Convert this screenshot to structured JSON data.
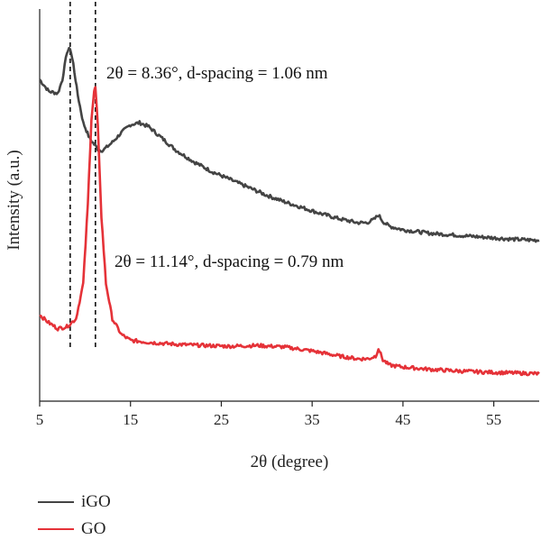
{
  "chart_data": {
    "type": "line",
    "xlabel": "2θ (degree)",
    "ylabel": "Intensity (a.u.)",
    "xlim": [
      5,
      60
    ],
    "xticks": [
      5,
      15,
      25,
      35,
      45,
      55
    ],
    "ylim": [
      0,
      100
    ],
    "vertical_dashed_lines": [
      8.36,
      11.14
    ],
    "annotations": [
      {
        "text": "2θ = 8.36°, d-spacing = 1.06 nm"
      },
      {
        "text": "2θ = 11.14°, d-spacing = 0.79 nm"
      }
    ],
    "legend_position": "bottom-left",
    "series": [
      {
        "name": "iGO",
        "color": "#444444",
        "x": [
          5,
          6,
          7,
          7.5,
          8,
          8.36,
          8.7,
          9.2,
          9.8,
          10.5,
          11,
          11.5,
          12,
          13,
          14,
          15,
          16,
          17,
          18,
          19,
          20,
          22,
          24,
          26,
          28,
          30,
          32,
          34,
          36,
          38,
          40,
          41,
          41.8,
          42.3,
          42.8,
          43.5,
          45,
          48,
          51,
          54,
          57,
          60
        ],
        "y": [
          82,
          79,
          78.5,
          82,
          89,
          90,
          86,
          78,
          71,
          67,
          65.5,
          64,
          64,
          66,
          68.5,
          70.5,
          71,
          70,
          68,
          66,
          64,
          61,
          58.5,
          56.5,
          54.5,
          52.5,
          50.8,
          49.3,
          47.8,
          46.5,
          45.5,
          45.5,
          46.3,
          47.5,
          45.8,
          44.6,
          43.7,
          42.8,
          42.3,
          41.8,
          41.3,
          41
        ]
      },
      {
        "name": "GO",
        "color": "#e53238",
        "x": [
          5,
          6,
          7,
          8,
          9,
          9.8,
          10.3,
          10.7,
          11.0,
          11.14,
          11.4,
          11.8,
          12.3,
          13,
          14,
          15,
          17,
          20,
          23,
          26,
          29,
          32,
          35,
          38,
          40,
          41.2,
          42,
          42.3,
          42.8,
          43.5,
          45,
          48,
          51,
          54,
          57,
          60
        ],
        "y": [
          22,
          20,
          18.5,
          19,
          21,
          30,
          50,
          72,
          79,
          80,
          70,
          47,
          30,
          21,
          17,
          15.5,
          15,
          14.5,
          14.2,
          14,
          14.2,
          13.8,
          12.8,
          11.5,
          10.8,
          10.8,
          11.5,
          13.5,
          10.5,
          9.2,
          8.7,
          8.1,
          7.7,
          7.4,
          7.2,
          7
        ]
      }
    ]
  }
}
